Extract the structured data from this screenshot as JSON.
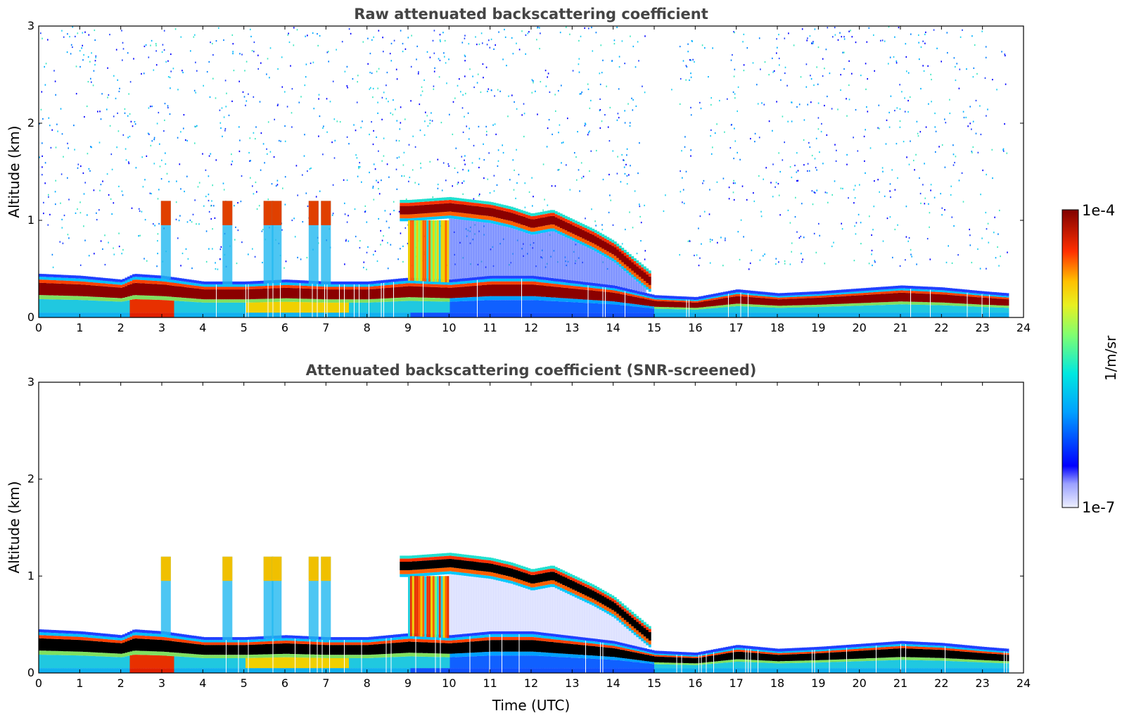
{
  "chart_data": [
    {
      "type": "heatmap",
      "title": "Raw attenuated backscattering coefficient",
      "xlabel": "",
      "ylabel": "Altitude (km)",
      "xlim": [
        0,
        24
      ],
      "ylim": [
        0,
        3
      ],
      "x_ticks": [
        "0",
        "1",
        "2",
        "3",
        "4",
        "5",
        "6",
        "7",
        "8",
        "9",
        "10",
        "11",
        "12",
        "13",
        "14",
        "15",
        "16",
        "17",
        "18",
        "19",
        "20",
        "21",
        "22",
        "23",
        "24"
      ],
      "y_ticks": [
        "0",
        "1",
        "2",
        "3"
      ],
      "grid": false,
      "colorscale": "jet (log)",
      "features": {
        "boundary_layer_top_km": {
          "x": [
            0,
            1,
            2,
            2.3,
            3,
            4,
            5,
            6,
            7,
            8,
            9,
            10,
            11,
            12,
            13,
            14,
            15,
            16,
            17,
            18,
            19,
            20,
            21,
            22,
            23,
            23.6
          ],
          "y": [
            0.42,
            0.4,
            0.36,
            0.42,
            0.4,
            0.34,
            0.34,
            0.36,
            0.34,
            0.34,
            0.38,
            0.36,
            0.4,
            0.4,
            0.35,
            0.3,
            0.2,
            0.18,
            0.26,
            0.22,
            0.24,
            0.27,
            0.3,
            0.28,
            0.24,
            0.22
          ]
        },
        "elevated_cloud_layer_base_km": {
          "x": [
            8.8,
            9,
            10,
            11,
            11.5,
            12,
            12.5,
            13,
            13.5,
            14,
            14.5,
            14.9
          ],
          "y": [
            1.02,
            1.02,
            1.05,
            1.0,
            0.95,
            0.88,
            0.92,
            0.82,
            0.72,
            0.6,
            0.42,
            0.28
          ]
        },
        "cloud_columns_utc": [
          3.1,
          4.6,
          5.6,
          5.8,
          6.7,
          7.0
        ],
        "data_end_utc": 23.6
      }
    },
    {
      "type": "heatmap",
      "title": "Attenuated backscattering coefficient (SNR-screened)",
      "xlabel": "Time (UTC)",
      "ylabel": "Altitude (km)",
      "xlim": [
        0,
        24
      ],
      "ylim": [
        0,
        3
      ],
      "x_ticks": [
        "0",
        "1",
        "2",
        "3",
        "4",
        "5",
        "6",
        "7",
        "8",
        "9",
        "10",
        "11",
        "12",
        "13",
        "14",
        "15",
        "16",
        "17",
        "18",
        "19",
        "20",
        "21",
        "22",
        "23",
        "24"
      ],
      "y_ticks": [
        "0",
        "1",
        "2",
        "3"
      ],
      "grid": false,
      "colorscale": "jet (log), saturated values black",
      "features": {
        "boundary_layer_top_km": {
          "x": [
            0,
            1,
            2,
            2.3,
            3,
            4,
            5,
            6,
            7,
            8,
            9,
            10,
            11,
            12,
            13,
            14,
            15,
            16,
            17,
            18,
            19,
            20,
            21,
            22,
            23,
            23.6
          ],
          "y": [
            0.42,
            0.4,
            0.36,
            0.42,
            0.4,
            0.34,
            0.34,
            0.36,
            0.34,
            0.34,
            0.38,
            0.36,
            0.4,
            0.4,
            0.35,
            0.3,
            0.2,
            0.18,
            0.26,
            0.22,
            0.24,
            0.27,
            0.3,
            0.28,
            0.24,
            0.22
          ]
        },
        "elevated_cloud_layer_base_km": {
          "x": [
            8.8,
            9,
            10,
            11,
            11.5,
            12,
            12.5,
            13,
            13.5,
            14,
            14.5,
            14.9
          ],
          "y": [
            1.02,
            1.02,
            1.05,
            1.0,
            0.95,
            0.88,
            0.92,
            0.82,
            0.72,
            0.6,
            0.42,
            0.28
          ]
        },
        "cloud_columns_utc": [
          3.1,
          4.6,
          5.6,
          5.8,
          6.7,
          7.0
        ],
        "data_end_utc": 23.6
      }
    }
  ],
  "colorbar": {
    "max_label": "1e-4",
    "min_label": "1e-7",
    "unit_label": "1/m/sr",
    "colors": [
      "#eef0ff",
      "#b8bcff",
      "#6b6bff",
      "#0000ff",
      "#0050ff",
      "#00a0ff",
      "#00e0e8",
      "#40ffb8",
      "#90ff60",
      "#e0ff20",
      "#ffd000",
      "#ff8000",
      "#ff2000",
      "#d00000",
      "#800000"
    ]
  }
}
